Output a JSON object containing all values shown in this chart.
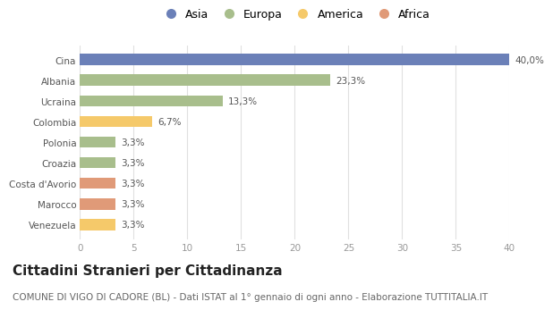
{
  "categories": [
    "Cina",
    "Albania",
    "Ucraina",
    "Colombia",
    "Polonia",
    "Croazia",
    "Costa d'Avorio",
    "Marocco",
    "Venezuela"
  ],
  "values": [
    40.0,
    23.3,
    13.3,
    6.7,
    3.3,
    3.3,
    3.3,
    3.3,
    3.3
  ],
  "labels": [
    "40,0%",
    "23,3%",
    "13,3%",
    "6,7%",
    "3,3%",
    "3,3%",
    "3,3%",
    "3,3%",
    "3,3%"
  ],
  "continents": [
    "Asia",
    "Europa",
    "Europa",
    "America",
    "Europa",
    "Europa",
    "Africa",
    "Africa",
    "America"
  ],
  "colors": {
    "Asia": "#6b80b8",
    "Europa": "#a8be8c",
    "America": "#f5c96a",
    "Africa": "#e09a78"
  },
  "legend_order": [
    "Asia",
    "Europa",
    "America",
    "Africa"
  ],
  "xlim": [
    0,
    40
  ],
  "xticks": [
    0,
    5,
    10,
    15,
    20,
    25,
    30,
    35,
    40
  ],
  "title": "Cittadini Stranieri per Cittadinanza",
  "subtitle": "COMUNE DI VIGO DI CADORE (BL) - Dati ISTAT al 1° gennaio di ogni anno - Elaborazione TUTTITALIA.IT",
  "background_color": "#ffffff",
  "grid_color": "#e0e0e0",
  "bar_height": 0.55,
  "title_fontsize": 11,
  "subtitle_fontsize": 7.5,
  "label_fontsize": 7.5,
  "tick_fontsize": 7.5,
  "legend_fontsize": 9
}
